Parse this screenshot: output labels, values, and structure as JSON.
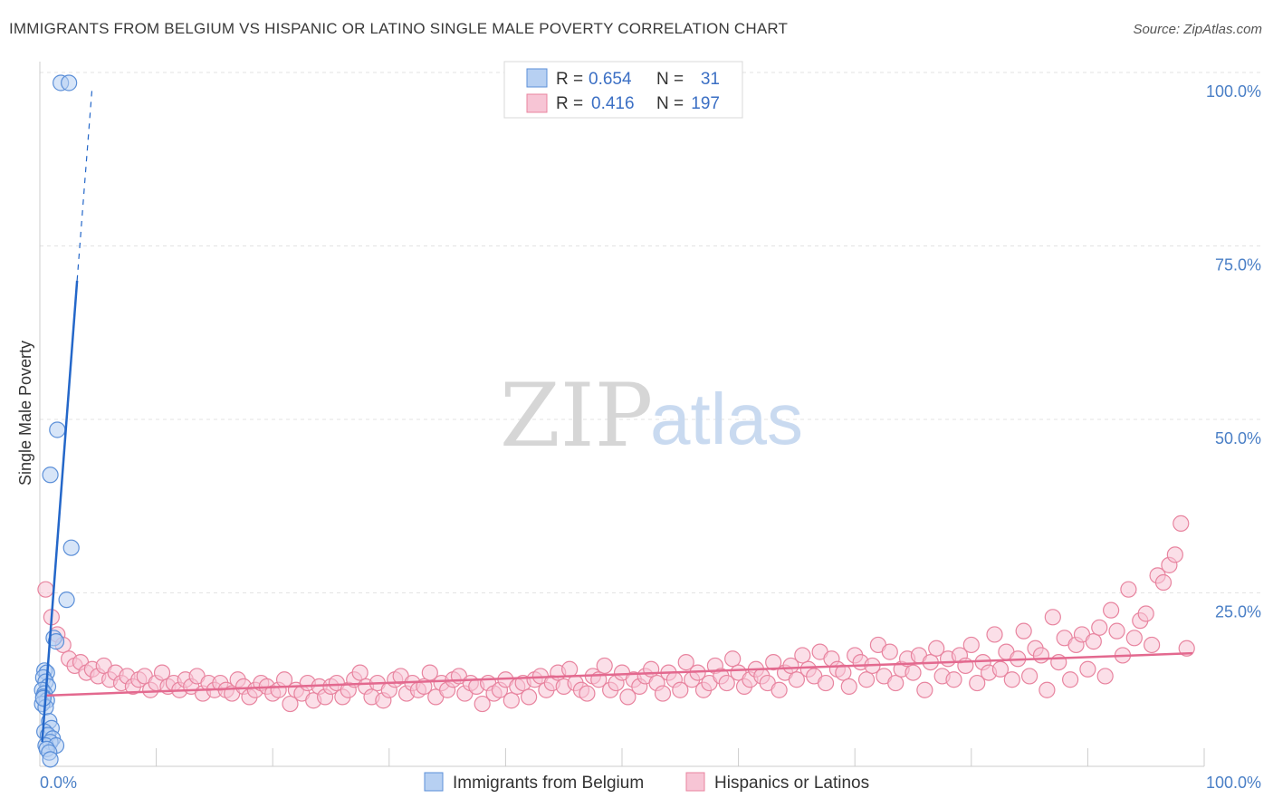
{
  "header": {
    "title": "IMMIGRANTS FROM BELGIUM VS HISPANIC OR LATINO SINGLE MALE POVERTY CORRELATION CHART",
    "source": "Source: ZipAtlas.com"
  },
  "watermark": {
    "zip": "ZIP",
    "atlas": "atlas"
  },
  "legend": {
    "r_label": "R =",
    "n_label": "N =",
    "rows": [
      {
        "r": "0.654",
        "n": "31"
      },
      {
        "r": "0.416",
        "n": "197"
      }
    ]
  },
  "colors": {
    "blue_fill": "#b7d0f2",
    "blue_stroke": "#5b8fd8",
    "blue_line": "#2467c9",
    "pink_fill": "#f7c5d5",
    "pink_stroke": "#e8849f",
    "pink_line": "#e3698f",
    "grid": "#e3e3e3",
    "tick": "#4a7fc6"
  },
  "chart_data": {
    "type": "scatter",
    "title": "IMMIGRANTS FROM BELGIUM VS HISPANIC OR LATINO SINGLE MALE POVERTY CORRELATION CHART",
    "xlabel": "",
    "ylabel": "Single Male Poverty",
    "xlim": [
      0,
      100
    ],
    "ylim": [
      0,
      100
    ],
    "x_ticks": [
      "0.0%",
      "100.0%"
    ],
    "y_ticks": [
      {
        "value": 25,
        "label": "25.0%"
      },
      {
        "value": 50,
        "label": "50.0%"
      },
      {
        "value": 75,
        "label": "75.0%"
      },
      {
        "value": 100,
        "label": "100.0%"
      }
    ],
    "series": [
      {
        "name": "Immigrants from Belgium",
        "color": "blue",
        "r": 0.654,
        "n": 31,
        "trend": {
          "x0": 0.2,
          "y0": 3.5,
          "x1": 3.2,
          "y1": 70,
          "dash_to": [
            4.5,
            98
          ]
        },
        "points": [
          [
            1.8,
            98.5
          ],
          [
            2.5,
            98.5
          ],
          [
            1.5,
            48.5
          ],
          [
            0.9,
            42.0
          ],
          [
            2.7,
            31.5
          ],
          [
            2.3,
            24.0
          ],
          [
            1.2,
            18.5
          ],
          [
            1.4,
            18.0
          ],
          [
            0.4,
            13.8
          ],
          [
            0.6,
            13.5
          ],
          [
            0.3,
            12.8
          ],
          [
            0.5,
            12.2
          ],
          [
            0.7,
            11.5
          ],
          [
            0.2,
            11.0
          ],
          [
            0.4,
            10.5
          ],
          [
            0.3,
            10.0
          ],
          [
            0.6,
            9.5
          ],
          [
            0.2,
            9.0
          ],
          [
            0.5,
            8.5
          ],
          [
            0.8,
            6.5
          ],
          [
            1.0,
            5.5
          ],
          [
            0.4,
            5.0
          ],
          [
            0.7,
            4.5
          ],
          [
            1.1,
            4.0
          ],
          [
            0.9,
            3.5
          ],
          [
            0.5,
            3.0
          ],
          [
            1.4,
            3.0
          ],
          [
            0.6,
            2.5
          ],
          [
            0.8,
            2.0
          ],
          [
            0.9,
            1.0
          ],
          [
            0.3,
            9.8
          ]
        ]
      },
      {
        "name": "Hispanics or Latinos",
        "color": "pink",
        "r": 0.416,
        "n": 197,
        "trend": {
          "x0": 0.5,
          "y0": 10.2,
          "x1": 99.0,
          "y1": 16.3
        },
        "points": [
          [
            0.5,
            25.5
          ],
          [
            1.0,
            21.5
          ],
          [
            1.5,
            19.0
          ],
          [
            2.0,
            17.5
          ],
          [
            2.5,
            15.5
          ],
          [
            3.0,
            14.5
          ],
          [
            3.5,
            15.0
          ],
          [
            4.0,
            13.5
          ],
          [
            4.5,
            14.0
          ],
          [
            5.0,
            13.0
          ],
          [
            5.5,
            14.5
          ],
          [
            6.0,
            12.5
          ],
          [
            6.5,
            13.5
          ],
          [
            7.0,
            12.0
          ],
          [
            7.5,
            13.0
          ],
          [
            8.0,
            11.5
          ],
          [
            8.5,
            12.5
          ],
          [
            9.0,
            13.0
          ],
          [
            9.5,
            11.0
          ],
          [
            10.0,
            12.0
          ],
          [
            10.5,
            13.5
          ],
          [
            11.0,
            11.5
          ],
          [
            11.5,
            12.0
          ],
          [
            12.0,
            11.0
          ],
          [
            12.5,
            12.5
          ],
          [
            13.0,
            11.5
          ],
          [
            13.5,
            13.0
          ],
          [
            14.0,
            10.5
          ],
          [
            14.5,
            12.0
          ],
          [
            15.0,
            11.0
          ],
          [
            15.5,
            12.0
          ],
          [
            16.0,
            11.0
          ],
          [
            16.5,
            10.5
          ],
          [
            17.0,
            12.5
          ],
          [
            17.5,
            11.5
          ],
          [
            18.0,
            10.0
          ],
          [
            18.5,
            11.0
          ],
          [
            19.0,
            12.0
          ],
          [
            19.5,
            11.5
          ],
          [
            20.0,
            10.5
          ],
          [
            20.5,
            11.0
          ],
          [
            21.0,
            12.5
          ],
          [
            21.5,
            9.0
          ],
          [
            22.0,
            11.0
          ],
          [
            22.5,
            10.5
          ],
          [
            23.0,
            12.0
          ],
          [
            23.5,
            9.5
          ],
          [
            24.0,
            11.5
          ],
          [
            24.5,
            10.0
          ],
          [
            25.0,
            11.5
          ],
          [
            25.5,
            12.0
          ],
          [
            26.0,
            10.0
          ],
          [
            26.5,
            11.0
          ],
          [
            27.0,
            12.5
          ],
          [
            27.5,
            13.5
          ],
          [
            28.0,
            11.5
          ],
          [
            28.5,
            10.0
          ],
          [
            29.0,
            12.0
          ],
          [
            29.5,
            9.5
          ],
          [
            30.0,
            11.0
          ],
          [
            30.5,
            12.5
          ],
          [
            31.0,
            13.0
          ],
          [
            31.5,
            10.5
          ],
          [
            32.0,
            12.0
          ],
          [
            32.5,
            11.0
          ],
          [
            33.0,
            11.5
          ],
          [
            33.5,
            13.5
          ],
          [
            34.0,
            10.0
          ],
          [
            34.5,
            12.0
          ],
          [
            35.0,
            11.0
          ],
          [
            35.5,
            12.5
          ],
          [
            36.0,
            13.0
          ],
          [
            36.5,
            10.5
          ],
          [
            37.0,
            12.0
          ],
          [
            37.5,
            11.5
          ],
          [
            38.0,
            9.0
          ],
          [
            38.5,
            12.0
          ],
          [
            39.0,
            10.5
          ],
          [
            39.5,
            11.0
          ],
          [
            40.0,
            12.5
          ],
          [
            40.5,
            9.5
          ],
          [
            41.0,
            11.5
          ],
          [
            41.5,
            12.0
          ],
          [
            42.0,
            10.0
          ],
          [
            42.5,
            12.5
          ],
          [
            43.0,
            13.0
          ],
          [
            43.5,
            11.0
          ],
          [
            44.0,
            12.0
          ],
          [
            44.5,
            13.5
          ],
          [
            45.0,
            11.5
          ],
          [
            45.5,
            14.0
          ],
          [
            46.0,
            12.0
          ],
          [
            46.5,
            11.0
          ],
          [
            47.0,
            10.5
          ],
          [
            47.5,
            13.0
          ],
          [
            48.0,
            12.5
          ],
          [
            48.5,
            14.5
          ],
          [
            49.0,
            11.0
          ],
          [
            49.5,
            12.0
          ],
          [
            50.0,
            13.5
          ],
          [
            50.5,
            10.0
          ],
          [
            51.0,
            12.5
          ],
          [
            51.5,
            11.5
          ],
          [
            52.0,
            13.0
          ],
          [
            52.5,
            14.0
          ],
          [
            53.0,
            12.0
          ],
          [
            53.5,
            10.5
          ],
          [
            54.0,
            13.5
          ],
          [
            54.5,
            12.5
          ],
          [
            55.0,
            11.0
          ],
          [
            55.5,
            15.0
          ],
          [
            56.0,
            12.5
          ],
          [
            56.5,
            13.5
          ],
          [
            57.0,
            11.0
          ],
          [
            57.5,
            12.0
          ],
          [
            58.0,
            14.5
          ],
          [
            58.5,
            13.0
          ],
          [
            59.0,
            12.0
          ],
          [
            59.5,
            15.5
          ],
          [
            60.0,
            13.5
          ],
          [
            60.5,
            11.5
          ],
          [
            61.0,
            12.5
          ],
          [
            61.5,
            14.0
          ],
          [
            62.0,
            13.0
          ],
          [
            62.5,
            12.0
          ],
          [
            63.0,
            15.0
          ],
          [
            63.5,
            11.0
          ],
          [
            64.0,
            13.5
          ],
          [
            64.5,
            14.5
          ],
          [
            65.0,
            12.5
          ],
          [
            65.5,
            16.0
          ],
          [
            66.0,
            14.0
          ],
          [
            66.5,
            13.0
          ],
          [
            67.0,
            16.5
          ],
          [
            67.5,
            12.0
          ],
          [
            68.0,
            15.5
          ],
          [
            68.5,
            14.0
          ],
          [
            69.0,
            13.5
          ],
          [
            69.5,
            11.5
          ],
          [
            70.0,
            16.0
          ],
          [
            70.5,
            15.0
          ],
          [
            71.0,
            12.5
          ],
          [
            71.5,
            14.5
          ],
          [
            72.0,
            17.5
          ],
          [
            72.5,
            13.0
          ],
          [
            73.0,
            16.5
          ],
          [
            73.5,
            12.0
          ],
          [
            74.0,
            14.0
          ],
          [
            74.5,
            15.5
          ],
          [
            75.0,
            13.5
          ],
          [
            75.5,
            16.0
          ],
          [
            76.0,
            11.0
          ],
          [
            76.5,
            15.0
          ],
          [
            77.0,
            17.0
          ],
          [
            77.5,
            13.0
          ],
          [
            78.0,
            15.5
          ],
          [
            78.5,
            12.5
          ],
          [
            79.0,
            16.0
          ],
          [
            79.5,
            14.5
          ],
          [
            80.0,
            17.5
          ],
          [
            80.5,
            12.0
          ],
          [
            81.0,
            15.0
          ],
          [
            81.5,
            13.5
          ],
          [
            82.0,
            19.0
          ],
          [
            82.5,
            14.0
          ],
          [
            83.0,
            16.5
          ],
          [
            83.5,
            12.5
          ],
          [
            84.0,
            15.5
          ],
          [
            84.5,
            19.5
          ],
          [
            85.0,
            13.0
          ],
          [
            85.5,
            17.0
          ],
          [
            86.0,
            16.0
          ],
          [
            86.5,
            11.0
          ],
          [
            87.0,
            21.5
          ],
          [
            87.5,
            15.0
          ],
          [
            88.0,
            18.5
          ],
          [
            88.5,
            12.5
          ],
          [
            89.0,
            17.5
          ],
          [
            89.5,
            19.0
          ],
          [
            90.0,
            14.0
          ],
          [
            90.5,
            18.0
          ],
          [
            91.0,
            20.0
          ],
          [
            91.5,
            13.0
          ],
          [
            92.0,
            22.5
          ],
          [
            92.5,
            19.5
          ],
          [
            93.0,
            16.0
          ],
          [
            93.5,
            25.5
          ],
          [
            94.0,
            18.5
          ],
          [
            94.5,
            21.0
          ],
          [
            95.0,
            22.0
          ],
          [
            95.5,
            17.5
          ],
          [
            96.0,
            27.5
          ],
          [
            96.5,
            26.5
          ],
          [
            97.0,
            29.0
          ],
          [
            97.5,
            30.5
          ],
          [
            98.0,
            35.0
          ],
          [
            98.5,
            17.0
          ]
        ]
      }
    ]
  }
}
